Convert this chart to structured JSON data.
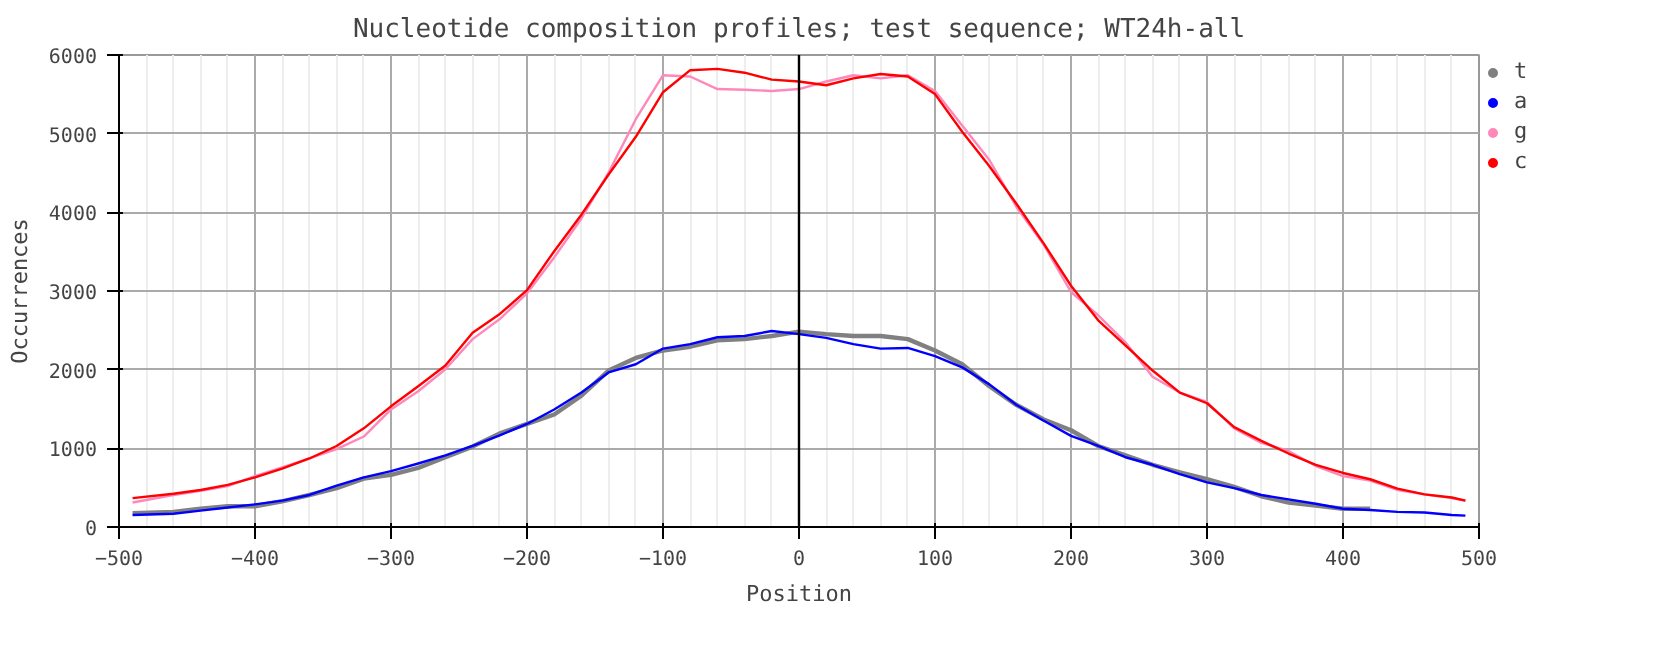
{
  "chart_data": {
    "type": "line",
    "title": "Nucleotide composition profiles; test sequence; WT24h-all",
    "xlabel": "Position",
    "ylabel": "Occurrences",
    "x": [
      -490,
      -460,
      -440,
      -420,
      -400,
      -380,
      -360,
      -340,
      -320,
      -300,
      -280,
      -260,
      -240,
      -220,
      -200,
      -180,
      -160,
      -140,
      -120,
      -100,
      -80,
      -60,
      -40,
      -20,
      0,
      20,
      40,
      60,
      80,
      100,
      120,
      140,
      160,
      180,
      200,
      220,
      240,
      260,
      280,
      300,
      320,
      340,
      360,
      380,
      400,
      420,
      440,
      460,
      480,
      490
    ],
    "series": [
      {
        "name": "t",
        "color": "#808080",
        "values": [
          176,
          192,
          232,
          264,
          264,
          327,
          407,
          495,
          615,
          663,
          751,
          887,
          1022,
          1190,
          1310,
          1430,
          1669,
          1989,
          2149,
          2244,
          2292,
          2372,
          2388,
          2428,
          2484,
          2452,
          2428,
          2428,
          2388,
          2244,
          2069,
          1789,
          1550,
          1366,
          1230,
          1030,
          911,
          791,
          695,
          607,
          511,
          391,
          311,
          272,
          232,
          232,
          null,
          null,
          null,
          null
        ]
      },
      {
        "name": "a",
        "color": "#0000ff",
        "values": [
          152,
          168,
          208,
          248,
          288,
          335,
          407,
          527,
          631,
          711,
          807,
          911,
          1030,
          1166,
          1310,
          1494,
          1709,
          1965,
          2069,
          2268,
          2324,
          2412,
          2428,
          2492,
          2452,
          2404,
          2324,
          2268,
          2276,
          2173,
          2029,
          1813,
          1550,
          1350,
          1158,
          1030,
          887,
          791,
          671,
          567,
          495,
          407,
          351,
          296,
          232,
          216,
          192,
          184,
          152,
          144
        ]
      },
      {
        "name": "g",
        "color": "#ff88bb",
        "values": [
          312,
          407,
          460,
          519,
          647,
          759,
          871,
          990,
          1150,
          1494,
          1725,
          2005,
          2388,
          2644,
          2971,
          3427,
          3922,
          4505,
          5184,
          5743,
          5727,
          5567,
          5559,
          5543,
          5567,
          5663,
          5743,
          5703,
          5743,
          5543,
          5104,
          4665,
          4065,
          3586,
          2987,
          2692,
          2348,
          1909,
          1709,
          1589,
          1254,
          1070,
          966,
          775,
          647,
          591,
          471,
          415,
          367,
          335
        ]
      },
      {
        "name": "c",
        "color": "#ff0000",
        "values": [
          367,
          423,
          471,
          535,
          631,
          743,
          871,
          1030,
          1254,
          1534,
          1789,
          2053,
          2468,
          2708,
          3011,
          3506,
          3970,
          4481,
          4960,
          5527,
          5807,
          5823,
          5775,
          5687,
          5663,
          5615,
          5703,
          5759,
          5727,
          5503,
          5024,
          4585,
          4105,
          3602,
          3067,
          2628,
          2308,
          1989,
          1709,
          1573,
          1270,
          1094,
          934,
          791,
          687,
          607,
          487,
          415,
          375,
          335
        ]
      }
    ],
    "xlim": [
      -500,
      500
    ],
    "ylim": [
      0,
      6000
    ],
    "xticks": [
      -500,
      -400,
      -300,
      -200,
      -100,
      0,
      100,
      200,
      300,
      400,
      500
    ],
    "yticks": [
      0,
      1000,
      2000,
      3000,
      4000,
      5000,
      6000
    ],
    "ref_lines": [
      {
        "axis": "x",
        "value": 0,
        "color": "#000000"
      }
    ],
    "grid": true,
    "legend": "top right",
    "marker": "none",
    "line_style": "solid"
  }
}
